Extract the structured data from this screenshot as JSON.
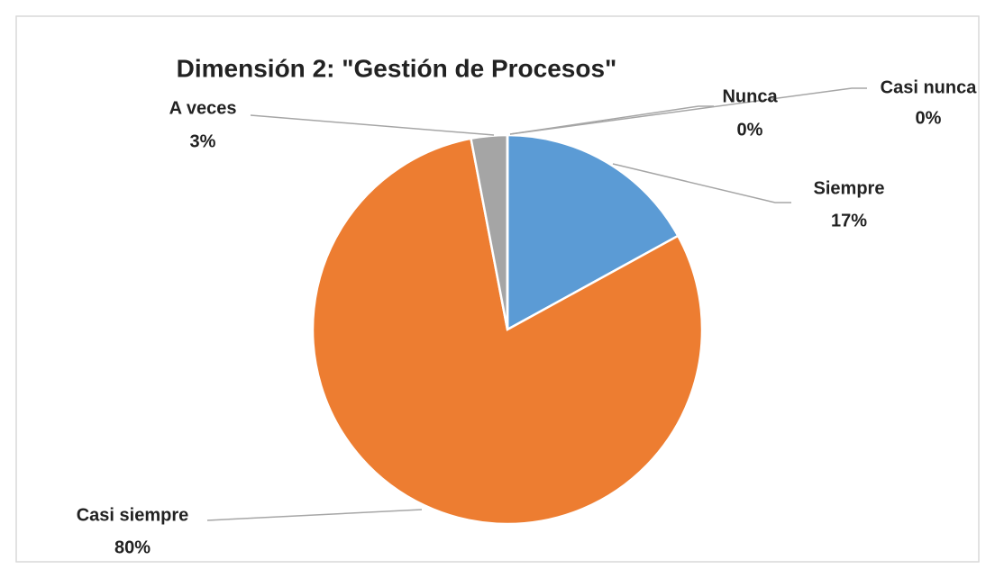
{
  "chart_data": {
    "type": "pie",
    "title": "Dimensión 2: \"Gestión de Procesos\"",
    "categories": [
      "Siempre",
      "Casi siempre",
      "A veces",
      "Casi nunca",
      "Nunca"
    ],
    "values": [
      17,
      80,
      3,
      0,
      0
    ],
    "value_labels": [
      "17%",
      "80%",
      "3%",
      "0%",
      "0%"
    ],
    "colors": [
      "#5b9bd5",
      "#ed7d31",
      "#a5a5a5",
      "#ffc000",
      "#4472c4"
    ]
  }
}
